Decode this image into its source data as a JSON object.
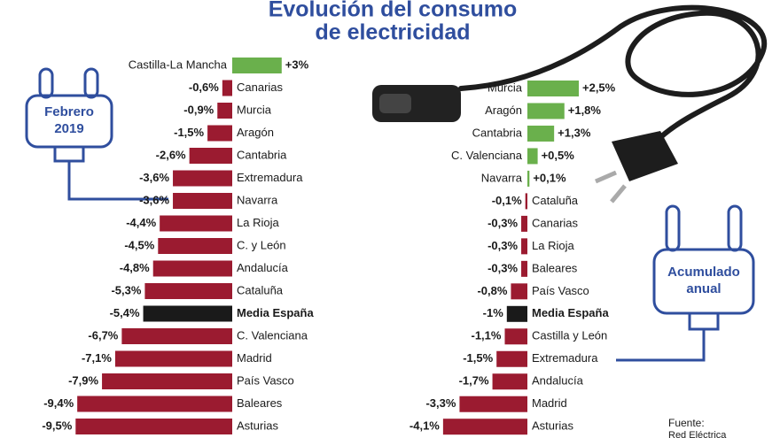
{
  "header": {
    "title": [
      "Evolución del consumo",
      "de electricidad"
    ]
  },
  "source": [
    "Fuente:",
    "Red Eléctrica"
  ],
  "chart_data": [
    {
      "type": "bar",
      "label": [
        "Febrero",
        "2019"
      ],
      "categories": [
        "Castilla-La Mancha",
        "Canarias",
        "Murcia",
        "Aragón",
        "Cantabria",
        "Extremadura",
        "Navarra",
        "La Rioja",
        "C. y León",
        "Andalucía",
        "Cataluña",
        "Media España",
        "C. Valenciana",
        "Madrid",
        "País Vasco",
        "Baleares",
        "Asturias"
      ],
      "values": [
        3,
        -0.6,
        -0.9,
        -1.5,
        -2.6,
        -3.6,
        -3.6,
        -4.4,
        -4.5,
        -4.8,
        -5.3,
        -5.4,
        -6.7,
        -7.1,
        -7.9,
        -9.4,
        -9.5
      ],
      "value_labels": [
        "+3%",
        "-0,6%",
        "-0,9%",
        "-1,5%",
        "-2,6%",
        "-3,6%",
        "-3,6%",
        "-4,4%",
        "-4,5%",
        "-4,8%",
        "-5,3%",
        "-5,4%",
        "-6,7%",
        "-7,1%",
        "-7,9%",
        "-9,4%",
        "-9,5%"
      ],
      "positive_color": "#6ab04c",
      "negative_color": "#9b1b30",
      "highlight_color": "#1a1a1a",
      "colors": [
        "#6ab04c",
        "#9b1b30",
        "#9b1b30",
        "#9b1b30",
        "#9b1b30",
        "#9b1b30",
        "#9b1b30",
        "#9b1b30",
        "#9b1b30",
        "#9b1b30",
        "#9b1b30",
        "#1a1a1a",
        "#9b1b30",
        "#9b1b30",
        "#9b1b30",
        "#9b1b30",
        "#9b1b30"
      ]
    },
    {
      "type": "bar",
      "label": [
        "Acumulado",
        "anual"
      ],
      "categories": [
        "Murcia",
        "Aragón",
        "Cantabria",
        "C. Valenciana",
        "Navarra",
        "Cataluña",
        "Canarias",
        "La Rioja",
        "Baleares",
        "País Vasco",
        "Media España",
        "Castilla y León",
        "Extremadura",
        "Andalucía",
        "Madrid",
        "Asturias"
      ],
      "values": [
        2.5,
        1.8,
        1.3,
        0.5,
        0.1,
        -0.1,
        -0.3,
        -0.3,
        -0.3,
        -0.8,
        -1,
        -1.1,
        -1.5,
        -1.7,
        -3.3,
        -4.1
      ],
      "value_labels": [
        "+2,5%",
        "+1,8%",
        "+1,3%",
        "+0,5%",
        "+0,1%",
        "-0,1%",
        "-0,3%",
        "-0,3%",
        "-0,3%",
        "-0,8%",
        "-1%",
        "-1,1%",
        "-1,5%",
        "-1,7%",
        "-3,3%",
        "-4,1%"
      ],
      "positive_color": "#6ab04c",
      "negative_color": "#9b1b30",
      "highlight_color": "#1a1a1a",
      "colors": [
        "#6ab04c",
        "#6ab04c",
        "#6ab04c",
        "#6ab04c",
        "#6ab04c",
        "#9b1b30",
        "#9b1b30",
        "#9b1b30",
        "#9b1b30",
        "#9b1b30",
        "#1a1a1a",
        "#9b1b30",
        "#9b1b30",
        "#9b1b30",
        "#9b1b30",
        "#9b1b30"
      ]
    }
  ]
}
